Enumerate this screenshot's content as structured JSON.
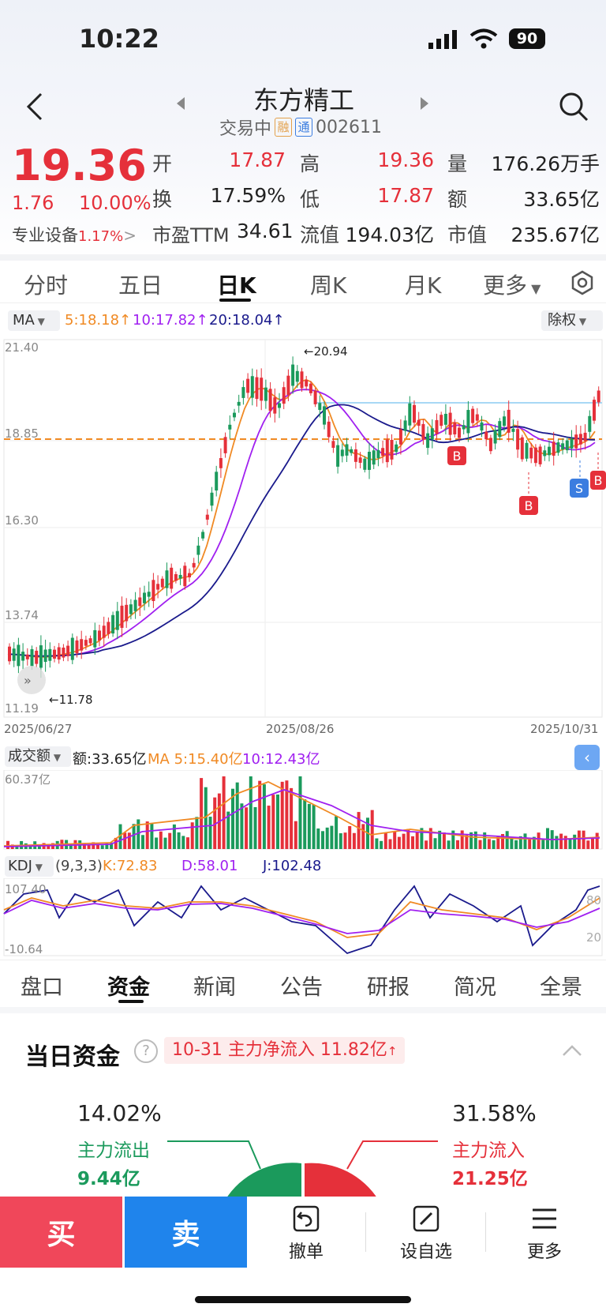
{
  "status": {
    "time": "10:22",
    "battery": "90"
  },
  "header": {
    "title": "东方精工",
    "status_text": "交易中",
    "badge_rong": "融",
    "badge_tong": "通",
    "code": "002611"
  },
  "quote": {
    "price": "19.36",
    "change": "1.76",
    "change_pct": "10.00%",
    "sector": "专业设备",
    "sector_pct": "1.17%",
    "open_label": "开",
    "open": "17.87",
    "high_label": "高",
    "high": "19.36",
    "vol_label": "量",
    "vol": "176.26万手",
    "turnover_label": "换",
    "turnover": "17.59%",
    "low_label": "低",
    "low": "17.87",
    "amount_label": "额",
    "amount": "33.65亿",
    "pe_label": "市盈TTM",
    "pe": "34.61",
    "float_label": "流值",
    "float_cap": "194.03亿",
    "cap_label": "市值",
    "cap": "235.67亿"
  },
  "chart_tabs": [
    "分时",
    "五日",
    "日K",
    "周K",
    "月K",
    "更多"
  ],
  "ma_bar": {
    "selector": "MA",
    "ma5": "5:18.18",
    "ma10": "10:17.82",
    "ma20": "20:18.04",
    "adjust": "除权"
  },
  "kline": {
    "y_ticks": [
      "21.40",
      "18.85",
      "16.30",
      "13.74",
      "11.19"
    ],
    "x_ticks": [
      "2025/06/27",
      "2025/08/26",
      "2025/10/31"
    ],
    "max_label": "20.94",
    "min_label": "11.78",
    "markers": [
      "B",
      "B",
      "S",
      "B"
    ]
  },
  "volume": {
    "selector": "成交额",
    "amount_text": "额:33.65亿",
    "ma5": "MA 5:15.40亿",
    "ma10": "10:12.43亿",
    "max_label": "60.37亿"
  },
  "kdj": {
    "selector": "KDJ",
    "params": "(9,3,3)",
    "k": "K:72.83",
    "d": "D:58.01",
    "j": "J:102.48",
    "top": "107.40",
    "bottom": "-10.64",
    "l80": "80",
    "l20": "20"
  },
  "sub_tabs": [
    "盘口",
    "资金",
    "新闻",
    "公告",
    "研报",
    "简况",
    "全景"
  ],
  "funds": {
    "title": "当日资金",
    "tag": "10-31 主力净流入 11.82亿",
    "out_pct": "14.02%",
    "out_label": "主力流出",
    "out_amount": "9.44亿",
    "in_pct": "31.58%",
    "in_label": "主力流入",
    "in_amount": "21.25亿"
  },
  "bottom": {
    "buy": "买",
    "sell": "卖",
    "cancel": "撤单",
    "watch": "设自选",
    "more": "更多"
  },
  "colors": {
    "up": "#e5303a",
    "down": "#1b9a5c",
    "ma5": "#f08a24",
    "ma10": "#a020f0",
    "ma20": "#1a1a8c"
  }
}
